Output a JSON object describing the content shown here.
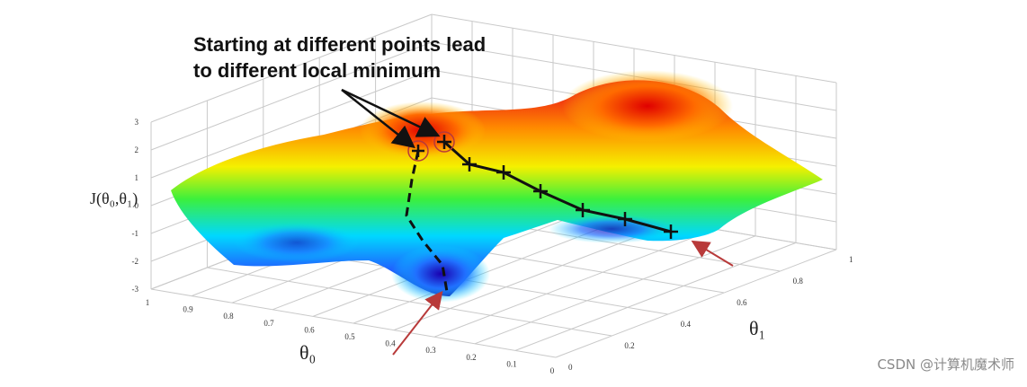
{
  "chart_data": {
    "type": "surface",
    "annotation": [
      "Starting at different points lead",
      "to different local minimum"
    ],
    "zlabel": "J(θ₀,θ₁)",
    "xlabel": "θ₀",
    "ylabel": "θ₁",
    "z_ticks": [
      "3",
      "2",
      "1",
      "0",
      "-1",
      "-2",
      "-3"
    ],
    "theta0_ticks": [
      "1",
      "0.9",
      "0.8",
      "0.7",
      "0.6",
      "0.5",
      "0.4",
      "0.3",
      "0.2",
      "0.1",
      "0"
    ],
    "theta1_ticks": [
      "0",
      "0.2",
      "0.4",
      "0.6",
      "0.8",
      "1"
    ],
    "zlim": [
      -3,
      3
    ],
    "grid": true,
    "colormap": "jet",
    "paths": [
      {
        "points": [
          [
            0.5,
            0.15,
            2.0
          ],
          [
            0.52,
            0.25,
            0.4
          ],
          [
            0.48,
            0.35,
            -1.2
          ],
          [
            0.42,
            0.45,
            -2.8
          ]
        ]
      },
      {
        "points": [
          [
            0.45,
            0.12,
            2.3
          ],
          [
            0.38,
            0.22,
            1.4
          ],
          [
            0.3,
            0.3,
            0.6
          ],
          [
            0.22,
            0.4,
            -0.2
          ],
          [
            0.14,
            0.5,
            -0.8
          ],
          [
            0.06,
            0.6,
            -1.3
          ],
          [
            0.0,
            0.7,
            -1.8
          ]
        ]
      }
    ]
  },
  "watermark": "CSDN @计算机魔术师",
  "colors": {
    "arrow_red": "#b83a3a",
    "path": "#111111"
  }
}
